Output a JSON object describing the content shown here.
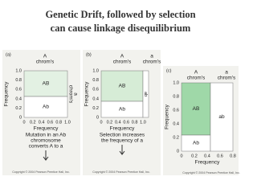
{
  "title": [
    "Genetic Drift, followed by selection",
    "can cause linkage disequilibrium"
  ],
  "panels": [
    {
      "label": "(a)",
      "header_A": [
        "A",
        "chrom's"
      ],
      "header_a": [
        "a",
        "chrom's"
      ],
      "y_axis": "Frequency",
      "yticks": [
        "1.0",
        "0.8",
        "0.6",
        "0.4",
        "0.2",
        "0"
      ],
      "xticks": [
        "0",
        "0.2",
        "0.4",
        "0.6",
        "0.8",
        "1.0"
      ],
      "x_axis": "Frequency",
      "regions": [
        "AB",
        "Ab"
      ],
      "caption": [
        "Mutation in an Ab",
        "chromosome",
        "converts A to a"
      ],
      "copyright": "Copyright © 2004 Pearson Prentice Hall, Inc."
    },
    {
      "label": "(b)",
      "header_A": [
        "A",
        "chrom's"
      ],
      "header_a": [
        "a",
        "chrom's"
      ],
      "y_axis": "Frequency",
      "yticks": [
        "1.0",
        "0.8",
        "0.6",
        "0.4",
        "0.2",
        "0"
      ],
      "xticks": [
        "0",
        "0.2",
        "0.4",
        "0.6",
        "0.8",
        "1.0"
      ],
      "x_axis": "Frequency",
      "regions": [
        "AB",
        "ab",
        "Ab"
      ],
      "caption": [
        "Selection increases",
        "the frequency of a"
      ],
      "copyright": "Copyright © 2004 Pearson Prentice Hall, Inc."
    },
    {
      "label": "(c)",
      "header_A": [
        "A",
        "chrom's"
      ],
      "header_a": [
        "a",
        "chrom's"
      ],
      "y_axis": "Frequency",
      "yticks": [
        "1.0",
        "0.8",
        "0.6",
        "0.4",
        "0.2",
        "0"
      ],
      "xticks": [
        "0",
        "0.2",
        "0.4",
        "0.6",
        "0.8"
      ],
      "x_axis": "Frequency",
      "regions": [
        "AB",
        "ab",
        "Ab"
      ],
      "caption": [],
      "copyright": "Copyright © 2004 Pearson Prentice Hall, Inc."
    }
  ]
}
